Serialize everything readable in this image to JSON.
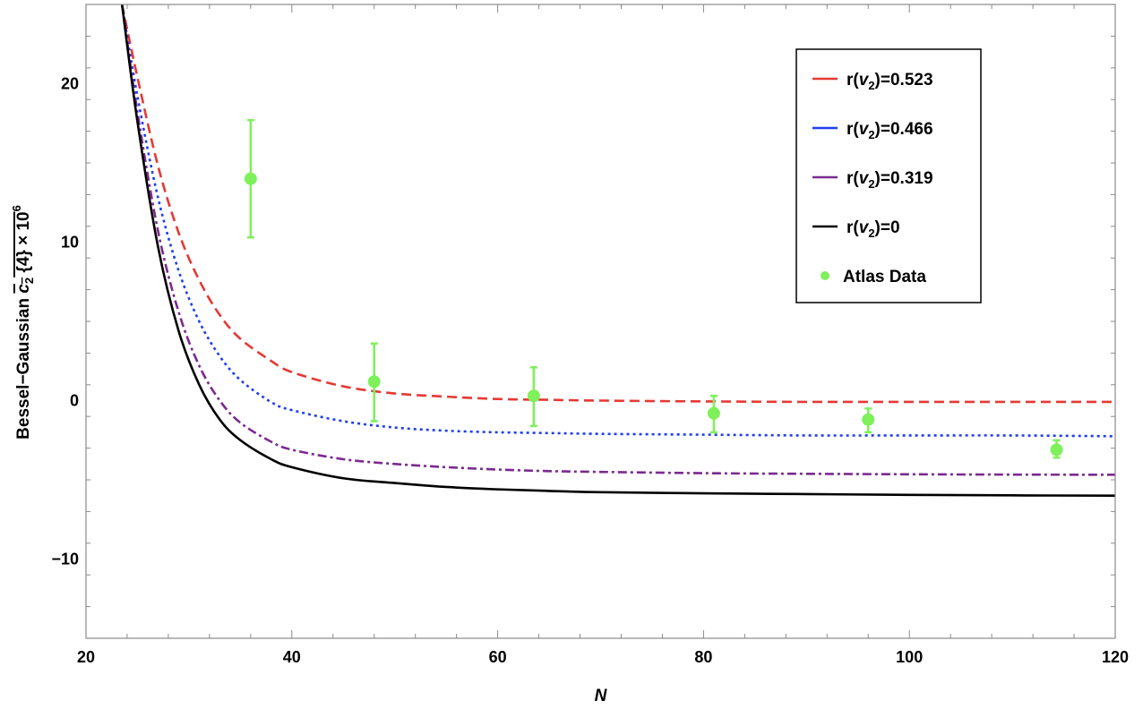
{
  "chart_data": {
    "type": "line",
    "xlabel": "N",
    "ylabel": "Bessel–Gaussian c₂{4} × 10⁶",
    "ylabel_parts": {
      "prefix": "Bessel−Gaussian ",
      "c": "c",
      "sub": "2",
      "brace": " {4} × 10",
      "sup": "6"
    },
    "xlim": [
      20,
      120
    ],
    "ylim": [
      -15,
      25
    ],
    "x_ticks": [
      "20",
      "40",
      "60",
      "80",
      "100",
      "120"
    ],
    "y_ticks": [
      "20",
      "10",
      "0",
      "−10"
    ],
    "grid": false,
    "legend_position": "top-right",
    "series": [
      {
        "name": "r(v₂)=0.523",
        "legend_prefix": "r(",
        "legend_var": "v",
        "legend_sub": "2",
        "legend_suffix": ")=0.523",
        "color": "#e53935",
        "style": "dashed",
        "x": [
          23.5,
          25,
          27,
          29,
          31,
          33,
          35,
          38,
          40,
          45,
          50,
          55,
          60,
          65,
          70,
          80,
          90,
          100,
          110,
          120
        ],
        "y": [
          25,
          20.4,
          14.8,
          10.6,
          7.6,
          5.4,
          3.9,
          2.5,
          1.8,
          0.9,
          0.45,
          0.25,
          0.1,
          0.05,
          0.0,
          -0.05,
          -0.08,
          -0.08,
          -0.08,
          -0.08
        ]
      },
      {
        "name": "r(v₂)=0.466",
        "legend_prefix": "r(",
        "legend_var": "v",
        "legend_sub": "2",
        "legend_suffix": ")=0.466",
        "color": "#1e3ff0",
        "style": "dotted",
        "x": [
          23.5,
          25,
          27,
          29,
          31,
          33,
          35,
          38,
          40,
          45,
          50,
          55,
          60,
          65,
          70,
          80,
          90,
          100,
          110,
          120
        ],
        "y": [
          25,
          19.2,
          12.8,
          8.2,
          5.0,
          2.8,
          1.3,
          -0.1,
          -0.6,
          -1.3,
          -1.7,
          -1.9,
          -2.0,
          -2.05,
          -2.1,
          -2.15,
          -2.2,
          -2.2,
          -2.2,
          -2.25
        ]
      },
      {
        "name": "r(v₂)=0.319",
        "legend_prefix": "r(",
        "legend_var": "v",
        "legend_sub": "2",
        "legend_suffix": ")=0.319",
        "color": "#7b2a8f",
        "style": "dashdot",
        "x": [
          23.5,
          25,
          27,
          29,
          31,
          33,
          35,
          38,
          40,
          45,
          50,
          55,
          60,
          65,
          70,
          80,
          90,
          100,
          110,
          120
        ],
        "y": [
          25,
          18.2,
          10.7,
          5.6,
          2.2,
          0.0,
          -1.4,
          -2.6,
          -3.1,
          -3.7,
          -4.0,
          -4.2,
          -4.35,
          -4.45,
          -4.5,
          -4.58,
          -4.62,
          -4.65,
          -4.67,
          -4.68
        ]
      },
      {
        "name": "r(v₂)=0",
        "legend_prefix": "r(",
        "legend_var": "v",
        "legend_sub": "2",
        "legend_suffix": ")=0",
        "color": "#000000",
        "style": "solid",
        "x": [
          23.5,
          25,
          27,
          29,
          31,
          33,
          35,
          38,
          40,
          45,
          50,
          55,
          60,
          65,
          70,
          80,
          90,
          100,
          110,
          120
        ],
        "y": [
          25,
          17.6,
          9.7,
          4.4,
          1.0,
          -1.2,
          -2.5,
          -3.7,
          -4.2,
          -4.9,
          -5.2,
          -5.45,
          -5.6,
          -5.7,
          -5.78,
          -5.85,
          -5.9,
          -5.95,
          -5.98,
          -6.0
        ]
      },
      {
        "name": "Atlas Data",
        "color": "#7ef05a",
        "style": "points",
        "x": [
          36,
          48,
          63.5,
          81,
          96,
          114.3
        ],
        "y": [
          14.0,
          1.2,
          0.3,
          -0.8,
          -1.2,
          -3.1
        ],
        "err_low": [
          10.3,
          -1.3,
          -1.6,
          -2.0,
          -2.0,
          -3.6
        ],
        "err_high": [
          17.7,
          3.6,
          2.1,
          0.3,
          -0.5,
          -2.5
        ]
      }
    ]
  }
}
